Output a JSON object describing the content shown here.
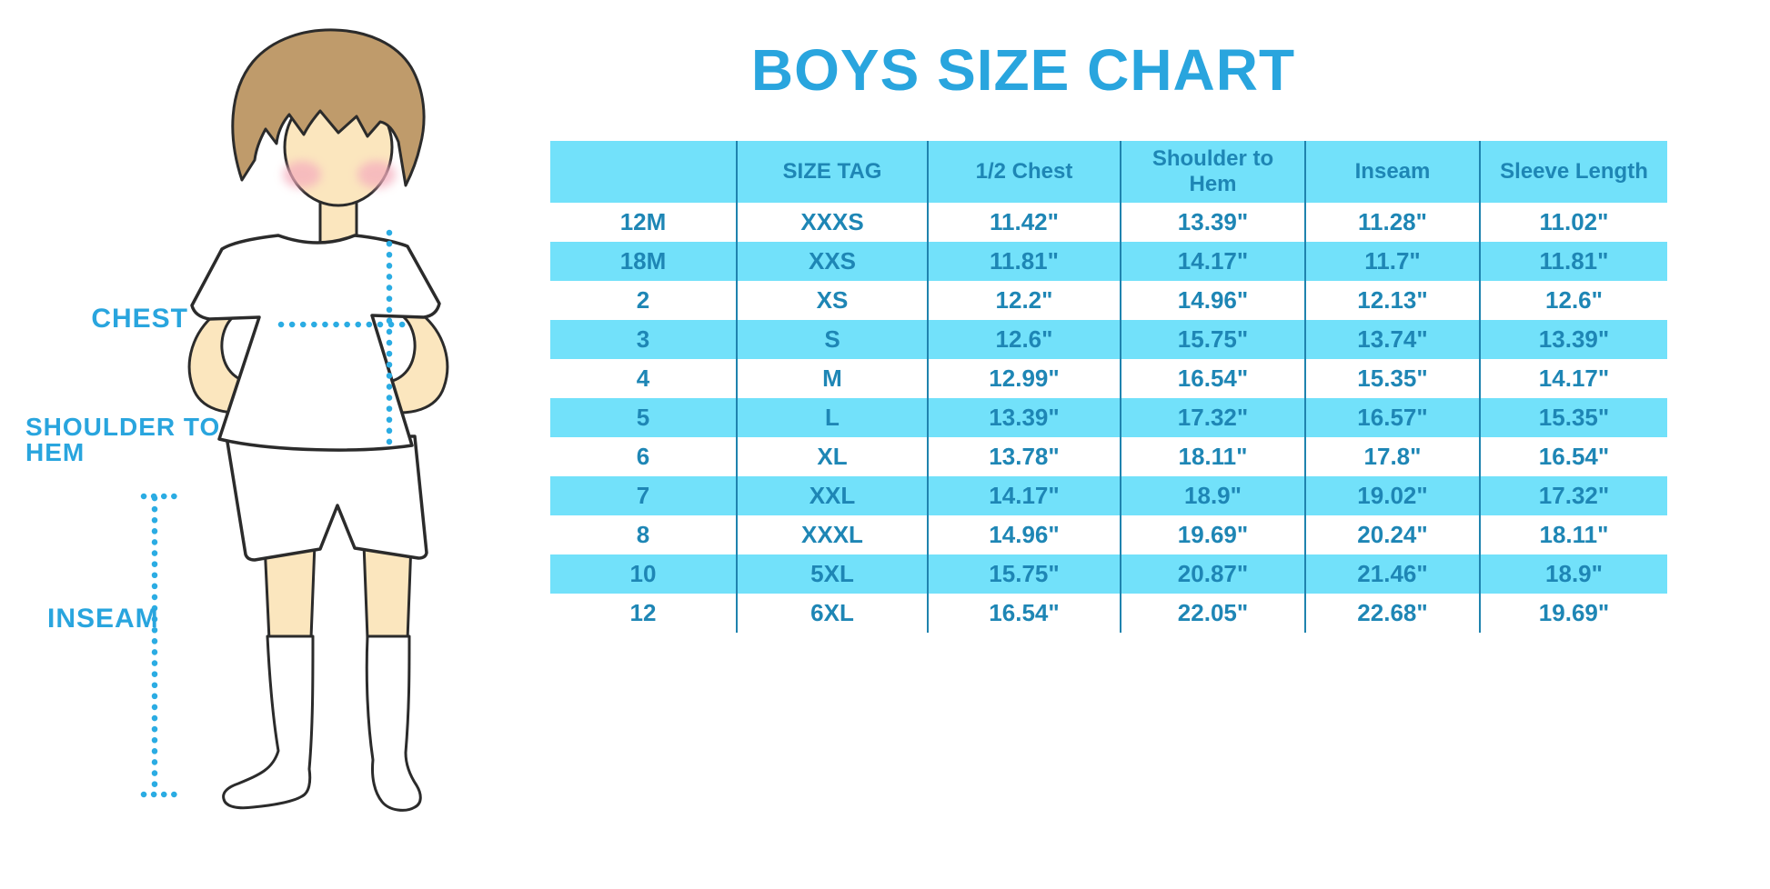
{
  "title": "BOYS SIZE CHART",
  "colors": {
    "accent": "#29A5DE",
    "table_text": "#1E86B5",
    "stripe": "#72E1FA",
    "divider": "#1F83AE",
    "dots": "#2BACE3",
    "skin": "#FBE6BE",
    "hair": "#BF9B6B",
    "outline": "#2B2B2B",
    "blush": "#F5AEBE"
  },
  "diagram_labels": {
    "chest": "CHEST",
    "shoulder_to_hem": "SHOULDER TO HEM",
    "inseam": "INSEAM"
  },
  "chart_data": {
    "type": "table",
    "title": "BOYS SIZE CHART",
    "columns": [
      "",
      "SIZE TAG",
      "1/2 Chest",
      "Shoulder to Hem",
      "Inseam",
      "Sleeve Length"
    ],
    "rows": [
      [
        "12M",
        "XXXS",
        "11.42\"",
        "13.39\"",
        "11.28\"",
        "11.02\""
      ],
      [
        "18M",
        "XXS",
        "11.81\"",
        "14.17\"",
        "11.7\"",
        "11.81\""
      ],
      [
        "2",
        "XS",
        "12.2\"",
        "14.96\"",
        "12.13\"",
        "12.6\""
      ],
      [
        "3",
        "S",
        "12.6\"",
        "15.75\"",
        "13.74\"",
        "13.39\""
      ],
      [
        "4",
        "M",
        "12.99\"",
        "16.54\"",
        "15.35\"",
        "14.17\""
      ],
      [
        "5",
        "L",
        "13.39\"",
        "17.32\"",
        "16.57\"",
        "15.35\""
      ],
      [
        "6",
        "XL",
        "13.78\"",
        "18.11\"",
        "17.8\"",
        "16.54\""
      ],
      [
        "7",
        "XXL",
        "14.17\"",
        "18.9\"",
        "19.02\"",
        "17.32\""
      ],
      [
        "8",
        "XXXL",
        "14.96\"",
        "19.69\"",
        "20.24\"",
        "18.11\""
      ],
      [
        "10",
        "5XL",
        "15.75\"",
        "20.87\"",
        "21.46\"",
        "18.9\""
      ],
      [
        "12",
        "6XL",
        "16.54\"",
        "22.05\"",
        "22.68\"",
        "19.69\""
      ]
    ],
    "units": "inches",
    "row_striping": [
      "white",
      "light-blue alternating"
    ]
  }
}
